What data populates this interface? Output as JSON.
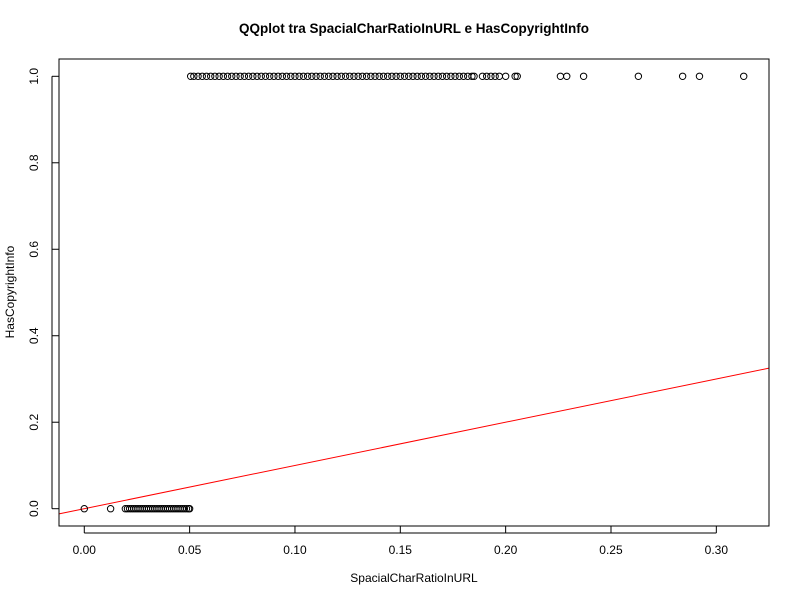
{
  "chart_data": {
    "type": "scatter",
    "title": "QQplot tra SpacialCharRatioInURL e HasCopyrightInfo",
    "xlabel": "SpacialCharRatioInURL",
    "ylabel": "HasCopyrightInfo",
    "xlim": [
      -0.012,
      0.325
    ],
    "ylim": [
      -0.04,
      1.04
    ],
    "x_ticks": [
      0.0,
      0.05,
      0.1,
      0.15,
      0.2,
      0.25,
      0.3
    ],
    "x_tick_labels": [
      "0.00",
      "0.05",
      "0.10",
      "0.15",
      "0.20",
      "0.25",
      "0.30"
    ],
    "y_ticks": [
      0.0,
      0.2,
      0.4,
      0.6,
      0.8,
      1.0
    ],
    "y_tick_labels": [
      "0.0",
      "0.2",
      "0.4",
      "0.6",
      "0.8",
      "1.0"
    ],
    "grid": false,
    "series": [
      {
        "marker": "open-circle",
        "color": "#000000",
        "points": [
          [
            0.0,
            0.0
          ],
          [
            0.0125,
            0.0
          ],
          [
            0.0195,
            0.0
          ],
          [
            0.0205,
            0.0
          ],
          [
            0.0215,
            0.0
          ],
          [
            0.0225,
            0.0
          ],
          [
            0.0235,
            0.0
          ],
          [
            0.0245,
            0.0
          ],
          [
            0.0255,
            0.0
          ],
          [
            0.0265,
            0.0
          ],
          [
            0.0275,
            0.0
          ],
          [
            0.0285,
            0.0
          ],
          [
            0.0295,
            0.0
          ],
          [
            0.0305,
            0.0
          ],
          [
            0.0315,
            0.0
          ],
          [
            0.0325,
            0.0
          ],
          [
            0.0335,
            0.0
          ],
          [
            0.0345,
            0.0
          ],
          [
            0.0355,
            0.0
          ],
          [
            0.0365,
            0.0
          ],
          [
            0.0375,
            0.0
          ],
          [
            0.0385,
            0.0
          ],
          [
            0.0395,
            0.0
          ],
          [
            0.0405,
            0.0
          ],
          [
            0.0415,
            0.0
          ],
          [
            0.0425,
            0.0
          ],
          [
            0.0435,
            0.0
          ],
          [
            0.0445,
            0.0
          ],
          [
            0.0455,
            0.0
          ],
          [
            0.0465,
            0.0
          ],
          [
            0.0475,
            0.0
          ],
          [
            0.0485,
            0.0
          ],
          [
            0.0495,
            0.0
          ],
          [
            0.05,
            0.0
          ],
          [
            0.0505,
            1.0
          ],
          [
            0.052,
            1.0
          ],
          [
            0.054,
            1.0
          ],
          [
            0.056,
            1.0
          ],
          [
            0.058,
            1.0
          ],
          [
            0.06,
            1.0
          ],
          [
            0.062,
            1.0
          ],
          [
            0.064,
            1.0
          ],
          [
            0.066,
            1.0
          ],
          [
            0.068,
            1.0
          ],
          [
            0.07,
            1.0
          ],
          [
            0.072,
            1.0
          ],
          [
            0.074,
            1.0
          ],
          [
            0.076,
            1.0
          ],
          [
            0.078,
            1.0
          ],
          [
            0.08,
            1.0
          ],
          [
            0.082,
            1.0
          ],
          [
            0.084,
            1.0
          ],
          [
            0.086,
            1.0
          ],
          [
            0.088,
            1.0
          ],
          [
            0.09,
            1.0
          ],
          [
            0.092,
            1.0
          ],
          [
            0.094,
            1.0
          ],
          [
            0.096,
            1.0
          ],
          [
            0.098,
            1.0
          ],
          [
            0.1,
            1.0
          ],
          [
            0.102,
            1.0
          ],
          [
            0.104,
            1.0
          ],
          [
            0.106,
            1.0
          ],
          [
            0.108,
            1.0
          ],
          [
            0.11,
            1.0
          ],
          [
            0.112,
            1.0
          ],
          [
            0.114,
            1.0
          ],
          [
            0.116,
            1.0
          ],
          [
            0.118,
            1.0
          ],
          [
            0.12,
            1.0
          ],
          [
            0.122,
            1.0
          ],
          [
            0.124,
            1.0
          ],
          [
            0.126,
            1.0
          ],
          [
            0.128,
            1.0
          ],
          [
            0.13,
            1.0
          ],
          [
            0.132,
            1.0
          ],
          [
            0.134,
            1.0
          ],
          [
            0.136,
            1.0
          ],
          [
            0.138,
            1.0
          ],
          [
            0.14,
            1.0
          ],
          [
            0.142,
            1.0
          ],
          [
            0.144,
            1.0
          ],
          [
            0.146,
            1.0
          ],
          [
            0.148,
            1.0
          ],
          [
            0.15,
            1.0
          ],
          [
            0.152,
            1.0
          ],
          [
            0.154,
            1.0
          ],
          [
            0.156,
            1.0
          ],
          [
            0.158,
            1.0
          ],
          [
            0.16,
            1.0
          ],
          [
            0.162,
            1.0
          ],
          [
            0.164,
            1.0
          ],
          [
            0.166,
            1.0
          ],
          [
            0.168,
            1.0
          ],
          [
            0.17,
            1.0
          ],
          [
            0.172,
            1.0
          ],
          [
            0.174,
            1.0
          ],
          [
            0.176,
            1.0
          ],
          [
            0.178,
            1.0
          ],
          [
            0.18,
            1.0
          ],
          [
            0.182,
            1.0
          ],
          [
            0.184,
            1.0
          ],
          [
            0.185,
            1.0
          ],
          [
            0.189,
            1.0
          ],
          [
            0.191,
            1.0
          ],
          [
            0.193,
            1.0
          ],
          [
            0.195,
            1.0
          ],
          [
            0.197,
            1.0
          ],
          [
            0.2,
            1.0
          ],
          [
            0.2045,
            1.0
          ],
          [
            0.2055,
            1.0
          ],
          [
            0.226,
            1.0
          ],
          [
            0.229,
            1.0
          ],
          [
            0.237,
            1.0
          ],
          [
            0.263,
            1.0
          ],
          [
            0.284,
            1.0
          ],
          [
            0.292,
            1.0
          ],
          [
            0.313,
            1.0
          ]
        ]
      }
    ],
    "reference_line": {
      "intercept": 0.0,
      "slope": 1.0,
      "color": "#ff0000"
    }
  }
}
